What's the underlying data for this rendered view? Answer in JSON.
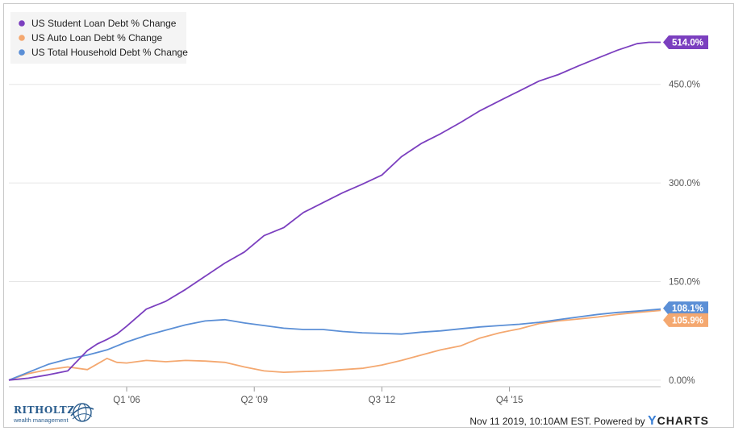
{
  "chart_data": {
    "type": "line",
    "title": "",
    "xlabel": "",
    "ylabel": "",
    "x_range": [
      2003.0,
      2019.6
    ],
    "ylim": [
      -10,
      560
    ],
    "y_ticks": [
      0,
      150,
      300,
      450
    ],
    "y_tick_labels": [
      "0.00%",
      "150.0%",
      "300.0%",
      "450.0%"
    ],
    "x_ticks": [
      2006.0,
      2009.25,
      2012.5,
      2015.75
    ],
    "x_tick_labels": [
      "Q1 '06",
      "Q2 '09",
      "Q3 '12",
      "Q4 '15"
    ],
    "grid": true,
    "legend_position": "top-left",
    "series": [
      {
        "name": "US Student Loan Debt % Change",
        "color": "#7b3fbf",
        "end_label": "514.0%",
        "x": [
          2003.0,
          2003.5,
          2004.0,
          2004.5,
          2005.0,
          2005.25,
          2005.5,
          2005.75,
          2006.0,
          2006.5,
          2007.0,
          2007.5,
          2008.0,
          2008.5,
          2009.0,
          2009.5,
          2010.0,
          2010.5,
          2011.0,
          2011.5,
          2012.0,
          2012.5,
          2013.0,
          2013.5,
          2014.0,
          2014.5,
          2015.0,
          2015.5,
          2016.0,
          2016.5,
          2017.0,
          2017.5,
          2018.0,
          2018.5,
          2019.0,
          2019.3,
          2019.6
        ],
        "values": [
          0,
          3,
          8,
          14,
          45,
          55,
          62,
          70,
          82,
          108,
          120,
          138,
          158,
          178,
          195,
          220,
          232,
          255,
          270,
          285,
          298,
          312,
          340,
          360,
          375,
          392,
          410,
          425,
          440,
          455,
          465,
          478,
          490,
          502,
          512,
          514,
          514
        ]
      },
      {
        "name": "US Auto Loan Debt % Change",
        "color": "#f4a870",
        "end_label": "105.9%",
        "x": [
          2003.0,
          2003.5,
          2004.0,
          2004.5,
          2005.0,
          2005.5,
          2005.75,
          2006.0,
          2006.5,
          2007.0,
          2007.5,
          2008.0,
          2008.5,
          2009.0,
          2009.5,
          2010.0,
          2010.5,
          2011.0,
          2011.5,
          2012.0,
          2012.5,
          2013.0,
          2013.5,
          2014.0,
          2014.5,
          2015.0,
          2015.5,
          2016.0,
          2016.5,
          2017.0,
          2017.5,
          2018.0,
          2018.5,
          2019.0,
          2019.6
        ],
        "values": [
          0,
          10,
          16,
          20,
          16,
          33,
          27,
          26,
          30,
          28,
          30,
          29,
          27,
          20,
          14,
          12,
          13,
          14,
          16,
          18,
          23,
          30,
          38,
          46,
          52,
          64,
          72,
          78,
          86,
          90,
          93,
          96,
          100,
          103,
          106
        ]
      },
      {
        "name": "US Total Household Debt % Change",
        "color": "#5b8fd6",
        "end_label": "108.1%",
        "x": [
          2003.0,
          2003.5,
          2004.0,
          2004.5,
          2005.0,
          2005.5,
          2006.0,
          2006.5,
          2007.0,
          2007.5,
          2008.0,
          2008.5,
          2009.0,
          2009.5,
          2010.0,
          2010.5,
          2011.0,
          2011.5,
          2012.0,
          2012.5,
          2013.0,
          2013.5,
          2014.0,
          2014.5,
          2015.0,
          2015.5,
          2016.0,
          2016.5,
          2017.0,
          2017.5,
          2018.0,
          2018.5,
          2019.0,
          2019.6
        ],
        "values": [
          0,
          12,
          24,
          32,
          38,
          46,
          58,
          68,
          76,
          84,
          90,
          92,
          87,
          83,
          79,
          77,
          77,
          74,
          72,
          71,
          70,
          73,
          75,
          78,
          81,
          83,
          85,
          88,
          92,
          96,
          100,
          103,
          105,
          108
        ]
      }
    ],
    "legend": {
      "items": [
        "US Student Loan Debt % Change",
        "US Auto Loan Debt % Change",
        "US Total Household Debt % Change"
      ]
    }
  },
  "footer": {
    "timestamp": "Nov 11 2019, 10:10AM EST.",
    "powered_by": "Powered by",
    "brand_y": "Y",
    "brand_rest": "CHARTS"
  },
  "logo": {
    "name": "RITHOLTZ",
    "subtitle": "wealth management"
  }
}
